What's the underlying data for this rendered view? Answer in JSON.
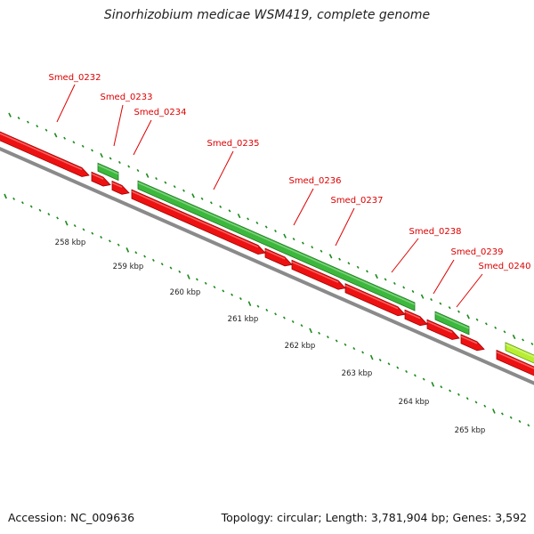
{
  "title": "Sinorhizobium medicae WSM419, complete genome",
  "footer": {
    "accession": "Accession: NC_009636",
    "summary": "Topology: circular; Length: 3,781,904 bp; Genes: 3,592"
  },
  "colors": {
    "forward_gene": "#3cb83c",
    "reverse_gene": "#ee1111",
    "label": "#dd0000",
    "tick": "#1a8a1a",
    "backbone": "#8a8a8a",
    "selected_gene": "#b8ee30"
  },
  "genes": [
    {
      "id": "Smed_0232",
      "strand": "reverse"
    },
    {
      "id": "Smed_0233",
      "strand": "forward"
    },
    {
      "id": "Smed_0234",
      "strand": "reverse"
    },
    {
      "id": "Smed_0235",
      "strand": "forward"
    },
    {
      "id": "Smed_0236",
      "strand": "reverse"
    },
    {
      "id": "Smed_0237",
      "strand": "reverse"
    },
    {
      "id": "Smed_0238",
      "strand": "reverse"
    },
    {
      "id": "Smed_0239",
      "strand": "forward"
    },
    {
      "id": "Smed_0240",
      "strand": "reverse"
    }
  ],
  "kbp_labels": [
    "258 kbp",
    "259 kbp",
    "260 kbp",
    "261 kbp",
    "262 kbp",
    "263 kbp",
    "264 kbp",
    "265 kbp"
  ]
}
